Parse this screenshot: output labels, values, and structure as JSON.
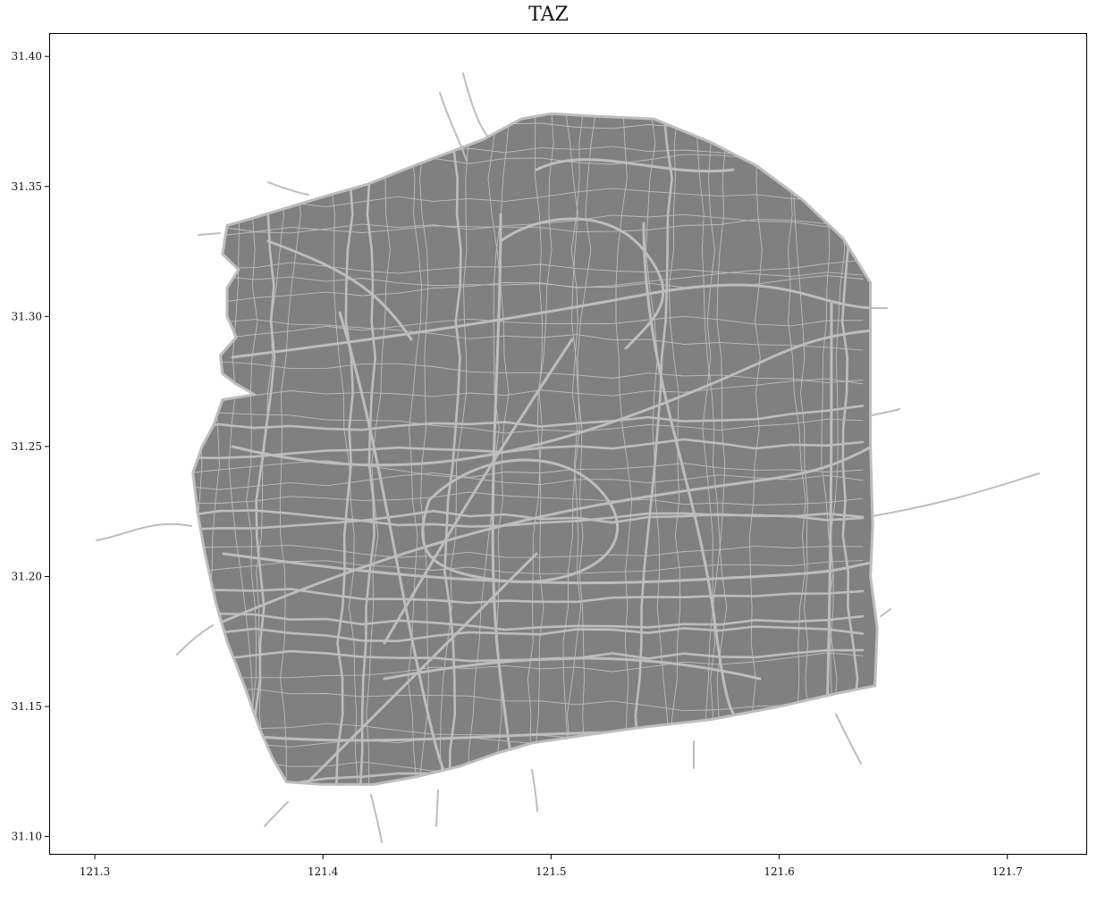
{
  "title": "TAZ",
  "chart_data": {
    "type": "map",
    "title": "TAZ",
    "xlabel": "",
    "ylabel": "",
    "x_ticks": [
      "121.3",
      "121.4",
      "121.5",
      "121.6",
      "121.7"
    ],
    "y_ticks": [
      "31.10",
      "31.15",
      "31.20",
      "31.25",
      "31.30",
      "31.35",
      "31.40"
    ],
    "xlim": [
      121.28,
      121.735
    ],
    "ylim": [
      31.093,
      31.409
    ],
    "grid": false,
    "colors": {
      "zone_fill": "#808080",
      "road": "#bdbdbd",
      "frame": "#000000",
      "background": "#ffffff"
    },
    "boundary": [
      [
        121.422,
        31.12
      ],
      [
        121.441,
        31.123
      ],
      [
        121.46,
        31.127
      ],
      [
        121.476,
        31.132
      ],
      [
        121.492,
        31.136
      ],
      [
        121.515,
        31.139
      ],
      [
        121.54,
        31.142
      ],
      [
        121.57,
        31.145
      ],
      [
        121.6,
        31.15
      ],
      [
        121.625,
        31.155
      ],
      [
        121.642,
        31.158
      ],
      [
        121.643,
        31.18
      ],
      [
        121.64,
        31.2
      ],
      [
        121.641,
        31.22
      ],
      [
        121.64,
        31.25
      ],
      [
        121.64,
        31.28
      ],
      [
        121.64,
        31.313
      ],
      [
        121.628,
        31.33
      ],
      [
        121.61,
        31.345
      ],
      [
        121.59,
        31.358
      ],
      [
        121.57,
        31.367
      ],
      [
        121.545,
        31.376
      ],
      [
        121.52,
        31.377
      ],
      [
        121.5,
        31.378
      ],
      [
        121.487,
        31.376
      ],
      [
        121.47,
        31.368
      ],
      [
        121.44,
        31.358
      ],
      [
        121.42,
        31.351
      ],
      [
        121.4,
        31.346
      ],
      [
        121.385,
        31.342
      ],
      [
        121.37,
        31.338
      ],
      [
        121.358,
        31.335
      ],
      [
        121.356,
        31.324
      ],
      [
        121.363,
        31.318
      ],
      [
        121.358,
        31.311
      ],
      [
        121.358,
        31.3
      ],
      [
        121.362,
        31.292
      ],
      [
        121.355,
        31.285
      ],
      [
        121.356,
        31.278
      ],
      [
        121.362,
        31.274
      ],
      [
        121.37,
        31.27
      ],
      [
        121.356,
        31.268
      ],
      [
        121.352,
        31.258
      ],
      [
        121.347,
        31.25
      ],
      [
        121.343,
        31.24
      ],
      [
        121.345,
        31.225
      ],
      [
        121.348,
        31.21
      ],
      [
        121.353,
        31.19
      ],
      [
        121.358,
        31.175
      ],
      [
        121.366,
        31.157
      ],
      [
        121.372,
        31.142
      ],
      [
        121.378,
        31.13
      ],
      [
        121.384,
        31.121
      ],
      [
        121.4,
        31.12
      ]
    ]
  }
}
